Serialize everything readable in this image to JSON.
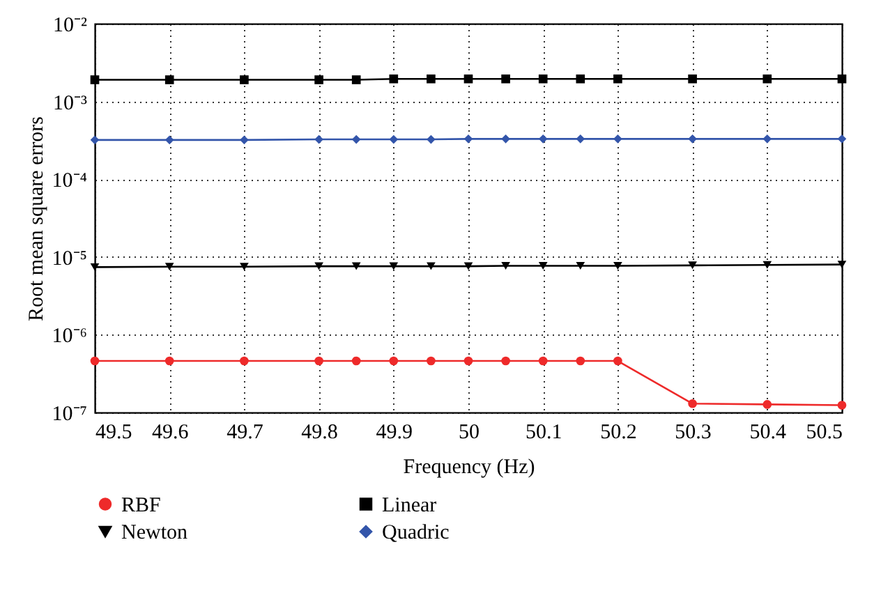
{
  "chart_data": {
    "type": "line",
    "xlabel": "Frequency (Hz)",
    "ylabel": "Root mean square errors",
    "x": [
      49.5,
      49.6,
      49.7,
      49.8,
      49.85,
      49.9,
      49.95,
      50,
      50.05,
      50.1,
      50.15,
      50.2,
      50.3,
      50.4,
      50.5
    ],
    "series": [
      {
        "name": "RBF",
        "color": "#ee2a2a",
        "marker": "circle",
        "values": [
          4.6e-07,
          4.6e-07,
          4.6e-07,
          4.6e-07,
          4.6e-07,
          4.6e-07,
          4.6e-07,
          4.6e-07,
          4.6e-07,
          4.6e-07,
          4.6e-07,
          4.6e-07,
          1.3e-07,
          1.27e-07,
          1.24e-07
        ]
      },
      {
        "name": "Linear",
        "color": "#000000",
        "marker": "square",
        "values": [
          0.0019,
          0.0019,
          0.0019,
          0.0019,
          0.0019,
          0.00195,
          0.00195,
          0.00195,
          0.00195,
          0.00195,
          0.00195,
          0.00195,
          0.00195,
          0.00195,
          0.00195
        ]
      },
      {
        "name": "Newton",
        "color": "#000000",
        "marker": "triangle",
        "values": [
          7.4e-06,
          7.5e-06,
          7.5e-06,
          7.6e-06,
          7.6e-06,
          7.6e-06,
          7.6e-06,
          7.6e-06,
          7.7e-06,
          7.7e-06,
          7.7e-06,
          7.7e-06,
          7.8e-06,
          7.9e-06,
          8e-06
        ]
      },
      {
        "name": "Quadric",
        "color": "#3355aa",
        "marker": "diamond",
        "values": [
          0.00032,
          0.00032,
          0.00032,
          0.000325,
          0.000325,
          0.000325,
          0.000325,
          0.00033,
          0.00033,
          0.00033,
          0.00033,
          0.00033,
          0.00033,
          0.00033,
          0.00033
        ]
      }
    ],
    "xlim": [
      49.5,
      50.5
    ],
    "xticks": [
      49.5,
      49.6,
      49.7,
      49.8,
      49.9,
      50,
      50.1,
      50.2,
      50.3,
      50.4,
      50.5
    ],
    "ylim": [
      1e-07,
      0.01
    ],
    "yticks": [
      {
        "value": 1e-07,
        "label": "10⁻⁷"
      },
      {
        "value": 1e-06,
        "label": "10⁻⁶"
      },
      {
        "value": 1e-05,
        "label": "10⁻⁵"
      },
      {
        "value": 0.0001,
        "label": "10⁻⁴"
      },
      {
        "value": 0.001,
        "label": "10⁻³"
      },
      {
        "value": 0.01,
        "label": "10⁻²"
      }
    ],
    "log": "y",
    "grid": true,
    "legend": "bottom",
    "line_style": "solid"
  }
}
